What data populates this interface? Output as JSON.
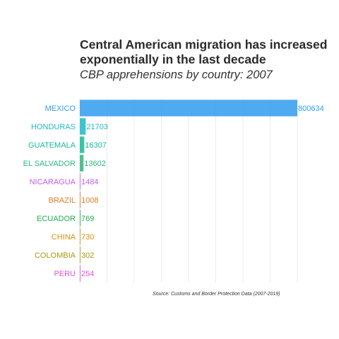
{
  "chart_data": {
    "type": "bar",
    "orientation": "horizontal",
    "title": "Central American migration has increased exponentially in the last decade",
    "subtitle": "CBP apprehensions by country: 2007",
    "caption": "Source: Customs and Border Protection Data (2007-2019)",
    "grid": true,
    "legend": "none",
    "xlim": [
      0,
      800634
    ],
    "categories": [
      "MEXICO",
      "HONDURAS",
      "GUATEMALA",
      "EL SALVADOR",
      "NICARAGUA",
      "BRAZIL",
      "ECUADOR",
      "CHINA",
      "COLOMBIA",
      "PERU"
    ],
    "values": [
      800634,
      21703,
      16307,
      13602,
      1484,
      1008,
      769,
      730,
      302,
      254
    ],
    "value_labels": [
      "800634",
      "21703",
      "16307",
      "13602",
      "1484",
      "1008",
      "769",
      "730",
      "302",
      "254"
    ],
    "colors": [
      "#2f9cf0",
      "#1fb8c8",
      "#1ab99a",
      "#2bb67c",
      "#c65cf2",
      "#e27a26",
      "#1eae52",
      "#d98e14",
      "#a89a14",
      "#ea4fd9"
    ]
  }
}
